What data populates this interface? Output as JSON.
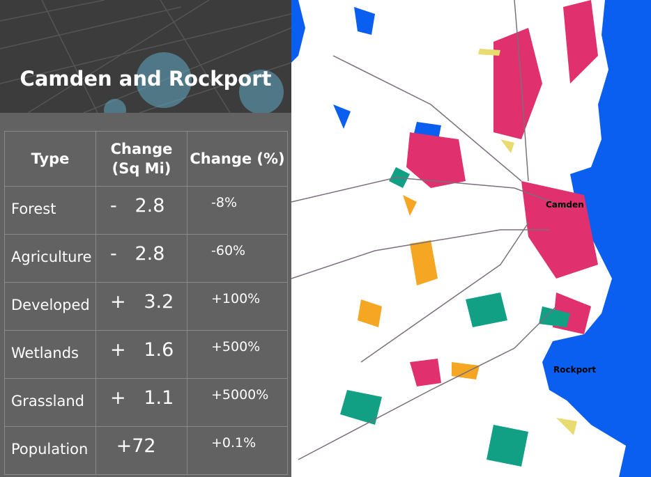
{
  "header": {
    "title": "Camden and Rockport"
  },
  "table": {
    "columns": [
      "Type",
      "Change (Sq Mi)",
      "Change (%)"
    ],
    "rows": [
      [
        "Forest",
        "-   2.8",
        "-8%"
      ],
      [
        "Agriculture",
        "-   2.8",
        "-60%"
      ],
      [
        "Developed",
        "+   3.2",
        "+100%"
      ],
      [
        "Wetlands",
        "+   1.6",
        "+500%"
      ],
      [
        "Grassland",
        "+   1.1",
        "+5000%"
      ],
      [
        "Population",
        " +72",
        "+0.1%"
      ]
    ]
  },
  "map": {
    "labels": [
      "Camden",
      "Rockport"
    ]
  }
}
